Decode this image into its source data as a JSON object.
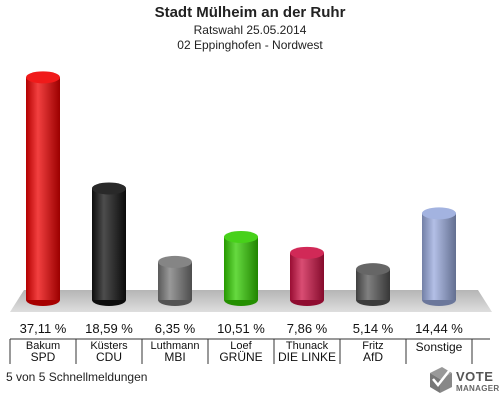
{
  "title": "Stadt Mülheim an der Ruhr",
  "subtitle1": "Ratswahl 25.05.2014",
  "subtitle2": "02 Eppinghofen - Nordwest",
  "footer": "5 von 5 Schnellmeldungen",
  "logo": {
    "line1": "VOTE",
    "line2": "MANAGER"
  },
  "chart_data": {
    "type": "bar",
    "categories": [
      "SPD",
      "CDU",
      "MBI",
      "GRÜNE",
      "DIE LINKE",
      "AfD",
      "Sonstige"
    ],
    "candidates": [
      "Bakum",
      "Küsters",
      "Luthmann",
      "Loef",
      "Thunack",
      "Fritz",
      ""
    ],
    "values": [
      37.11,
      18.59,
      6.35,
      10.51,
      7.86,
      5.14,
      14.44
    ],
    "value_labels": [
      "37,11 %",
      "18,59 %",
      "6,35 %",
      "10,51 %",
      "7,86 %",
      "5,14 %",
      "14,44 %"
    ],
    "colors": [
      "#ee0000",
      "#111111",
      "#777777",
      "#33cc00",
      "#cc1144",
      "#555555",
      "#99aadd"
    ],
    "ylim": [
      0,
      40
    ]
  }
}
